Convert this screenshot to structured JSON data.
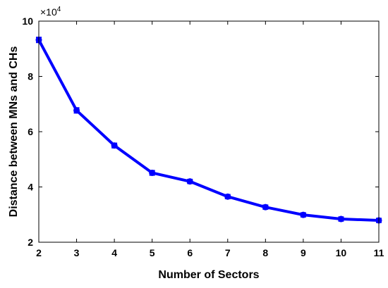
{
  "chart_data": {
    "type": "line",
    "x": [
      2,
      3,
      4,
      5,
      6,
      7,
      8,
      9,
      10,
      11
    ],
    "series": [
      {
        "values": [
          93200,
          67700,
          55000,
          45100,
          42000,
          36500,
          32700,
          29900,
          28400,
          27900
        ],
        "error": [
          900,
          900,
          800,
          800,
          700,
          700,
          700,
          700,
          700,
          700
        ],
        "color": "#0000ff"
      }
    ],
    "xlabel": "Number of Sectors",
    "ylabel": "Distance between MNs and CHs",
    "xlim": [
      2,
      11
    ],
    "ylim": [
      20000,
      100000
    ],
    "xticks": [
      "2",
      "3",
      "4",
      "5",
      "6",
      "7",
      "8",
      "9",
      "10",
      "11"
    ],
    "yticks": [
      "2",
      "4",
      "6",
      "8",
      "10"
    ],
    "ytick_values": [
      20000,
      40000,
      60000,
      80000,
      100000
    ],
    "y_exponent_base": "×10",
    "y_exponent_power": "4",
    "grid": false,
    "legend": "none"
  }
}
